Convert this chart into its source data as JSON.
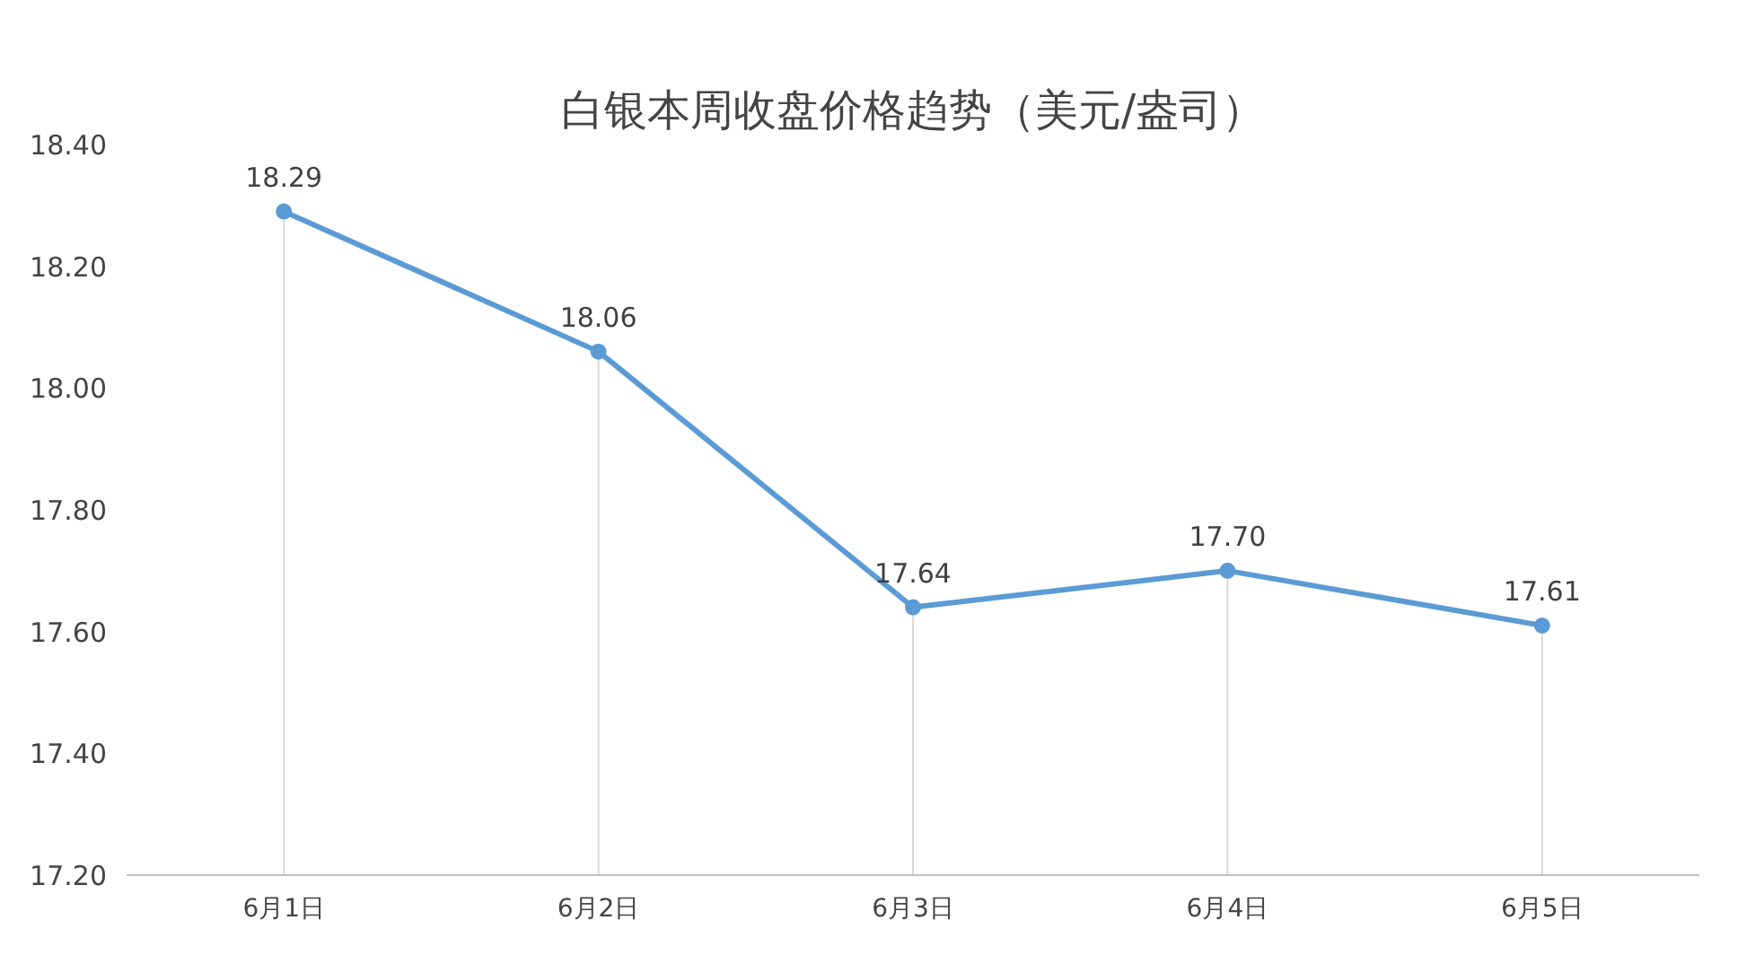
{
  "chart_data": {
    "type": "line",
    "title": "白银本周收盘价格趋势（美元/盎司）",
    "categories": [
      "6月1日",
      "6月2日",
      "6月3日",
      "6月4日",
      "6月5日"
    ],
    "series": [
      {
        "color": "#5b9bd5",
        "values": [
          18.29,
          18.06,
          17.64,
          17.7,
          17.61
        ],
        "value_labels": [
          "18.29",
          "18.06",
          "17.64",
          "17.70",
          "17.61"
        ]
      }
    ],
    "ylim": [
      17.2,
      18.4
    ],
    "yticks": [
      {
        "value": 17.2,
        "label": "17.20"
      },
      {
        "value": 17.4,
        "label": "17.40"
      },
      {
        "value": 17.6,
        "label": "17.60"
      },
      {
        "value": 17.8,
        "label": "17.80"
      },
      {
        "value": 18.0,
        "label": "18.00"
      },
      {
        "value": 18.2,
        "label": "18.20"
      },
      {
        "value": 18.4,
        "label": "18.40"
      }
    ],
    "grid": "x",
    "marker": "circle",
    "line_style": "solid"
  }
}
